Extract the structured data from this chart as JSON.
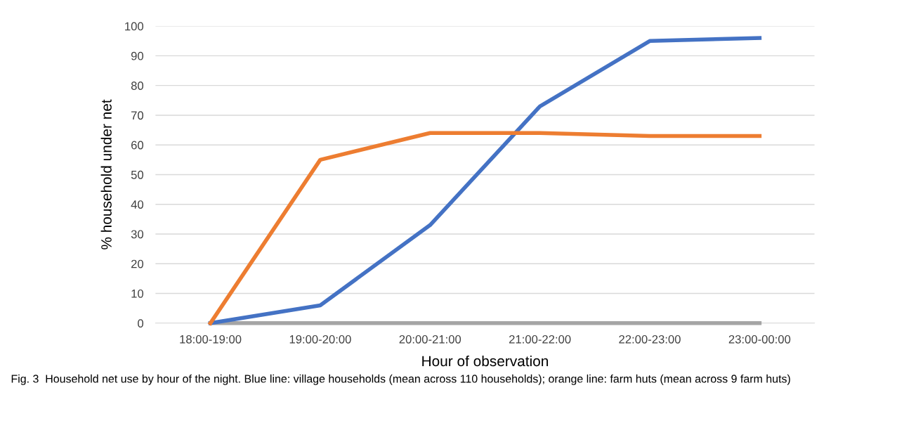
{
  "chart_data": {
    "type": "line",
    "xlabel": "Hour of observation",
    "ylabel": "% household under net",
    "categories": [
      "18:00-19:00",
      "19:00-20:00",
      "20:00-21:00",
      "21:00-22:00",
      "22:00-23:00",
      "23:00-00:00"
    ],
    "series": [
      {
        "color": "#a5a5a5",
        "values": [
          0,
          0,
          0,
          0,
          0,
          0
        ]
      },
      {
        "color": "#4472c4",
        "values": [
          0,
          6,
          33,
          73,
          95,
          96
        ]
      },
      {
        "color": "#ed7d31",
        "values": [
          0,
          55,
          64,
          64,
          63,
          63
        ]
      }
    ],
    "ylim": [
      0,
      100
    ],
    "yticks": [
      0,
      10,
      20,
      30,
      40,
      50,
      60,
      70,
      80,
      90,
      100
    ],
    "grid": "y",
    "marker": "none",
    "line_style": "solid",
    "annotations": [
      "Fig. 3  Household net use by hour of the night. Blue line: village households (mean across 110 households); orange line: farm huts (mean across 9 farm huts)"
    ]
  }
}
